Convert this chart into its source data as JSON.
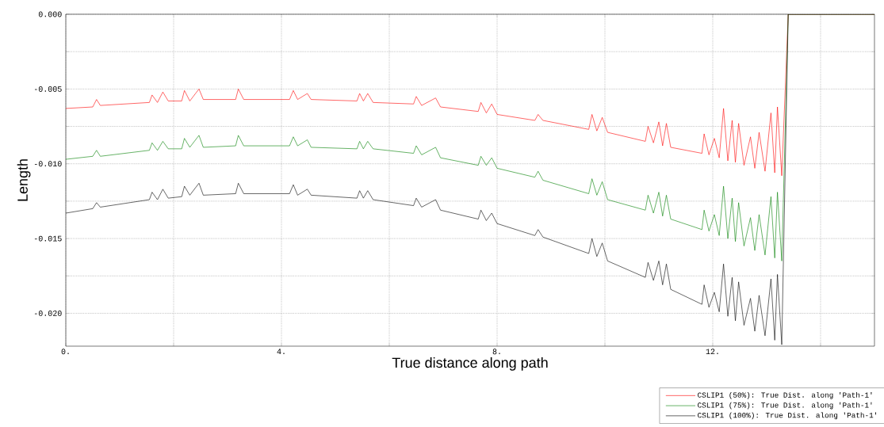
{
  "chart_data": {
    "type": "line",
    "xlabel": "True distance along path",
    "ylabel": "Length",
    "x": [
      0,
      0.5,
      0.57,
      0.64,
      1.55,
      1.6,
      1.7,
      1.8,
      1.9,
      2.15,
      2.2,
      2.3,
      2.47,
      2.55,
      3.15,
      3.2,
      3.3,
      4.15,
      4.22,
      4.3,
      4.48,
      4.55,
      5.4,
      5.45,
      5.52,
      5.6,
      5.7,
      6.45,
      6.5,
      6.6,
      6.86,
      6.95,
      7.65,
      7.7,
      7.8,
      7.9,
      8.0,
      8.7,
      8.76,
      8.85,
      9.7,
      9.76,
      9.85,
      9.95,
      10.05,
      10.75,
      10.8,
      10.9,
      11.0,
      11.07,
      11.14,
      11.22,
      11.8,
      11.84,
      11.93,
      12.03,
      12.12,
      12.2,
      12.28,
      12.36,
      12.42,
      12.48,
      12.58,
      12.7,
      12.78,
      12.86,
      12.97,
      13.08,
      13.15,
      13.2,
      13.28,
      13.4,
      14,
      15
    ],
    "series": [
      {
        "name": "CSLIP1 (50%): True Dist. along 'Path-1'",
        "color": "#ff0000",
        "values": [
          -0.0063,
          -0.0062,
          -0.0057,
          -0.0061,
          -0.0059,
          -0.0054,
          -0.0059,
          -0.0052,
          -0.0058,
          -0.0058,
          -0.0051,
          -0.0058,
          -0.005,
          -0.0057,
          -0.0057,
          -0.005,
          -0.0057,
          -0.0057,
          -0.0051,
          -0.0057,
          -0.0053,
          -0.0057,
          -0.0058,
          -0.0053,
          -0.0058,
          -0.0053,
          -0.0059,
          -0.006,
          -0.0055,
          -0.0061,
          -0.0056,
          -0.0062,
          -0.0065,
          -0.0059,
          -0.0066,
          -0.006,
          -0.0067,
          -0.0071,
          -0.0067,
          -0.0071,
          -0.0077,
          -0.0067,
          -0.0078,
          -0.0069,
          -0.0079,
          -0.0085,
          -0.0075,
          -0.0086,
          -0.0072,
          -0.0088,
          -0.0073,
          -0.0089,
          -0.0093,
          -0.008,
          -0.0094,
          -0.0083,
          -0.0096,
          -0.0063,
          -0.0098,
          -0.0071,
          -0.0099,
          -0.0073,
          -0.0101,
          -0.0082,
          -0.0103,
          -0.0079,
          -0.0105,
          -0.0066,
          -0.0106,
          -0.0062,
          -0.0108,
          0,
          0,
          0
        ]
      },
      {
        "name": "CSLIP1 (75%): True Dist. along 'Path-1'",
        "color": "#008000",
        "values": [
          -0.0097,
          -0.0095,
          -0.0091,
          -0.0095,
          -0.0091,
          -0.0086,
          -0.0091,
          -0.0085,
          -0.009,
          -0.009,
          -0.0083,
          -0.0089,
          -0.0081,
          -0.0089,
          -0.0088,
          -0.0081,
          -0.0088,
          -0.0088,
          -0.0082,
          -0.0088,
          -0.0084,
          -0.0089,
          -0.009,
          -0.0085,
          -0.009,
          -0.0085,
          -0.009,
          -0.0093,
          -0.0088,
          -0.0094,
          -0.0089,
          -0.0096,
          -0.0101,
          -0.0095,
          -0.0101,
          -0.0096,
          -0.0103,
          -0.0109,
          -0.0105,
          -0.0111,
          -0.012,
          -0.011,
          -0.0121,
          -0.0112,
          -0.0124,
          -0.0131,
          -0.0121,
          -0.0133,
          -0.0119,
          -0.0135,
          -0.0121,
          -0.0137,
          -0.0144,
          -0.0131,
          -0.0145,
          -0.0134,
          -0.0148,
          -0.0115,
          -0.015,
          -0.0123,
          -0.0152,
          -0.0126,
          -0.0155,
          -0.0136,
          -0.0158,
          -0.0134,
          -0.0161,
          -0.0122,
          -0.0163,
          -0.0119,
          -0.0165,
          0,
          0,
          0
        ]
      },
      {
        "name": "CSLIP1 (100%): True Dist. along 'Path-1'",
        "color": "#000000",
        "values": [
          -0.0133,
          -0.013,
          -0.0126,
          -0.0129,
          -0.0124,
          -0.0119,
          -0.0124,
          -0.0117,
          -0.0123,
          -0.0122,
          -0.0115,
          -0.0121,
          -0.0113,
          -0.0121,
          -0.012,
          -0.0113,
          -0.012,
          -0.012,
          -0.0114,
          -0.0121,
          -0.0117,
          -0.0121,
          -0.0123,
          -0.0118,
          -0.0123,
          -0.0118,
          -0.0124,
          -0.0128,
          -0.0123,
          -0.0129,
          -0.0124,
          -0.0131,
          -0.0137,
          -0.0131,
          -0.0138,
          -0.0133,
          -0.014,
          -0.0148,
          -0.0144,
          -0.0149,
          -0.016,
          -0.015,
          -0.0162,
          -0.0153,
          -0.0165,
          -0.0176,
          -0.0166,
          -0.0178,
          -0.0165,
          -0.0181,
          -0.0167,
          -0.0184,
          -0.0194,
          -0.0181,
          -0.0196,
          -0.0186,
          -0.0199,
          -0.0167,
          -0.0202,
          -0.0176,
          -0.0205,
          -0.0179,
          -0.0208,
          -0.019,
          -0.0212,
          -0.0188,
          -0.0215,
          -0.0177,
          -0.0218,
          -0.0174,
          -0.0221,
          0,
          0,
          0
        ]
      }
    ],
    "xlim": [
      0,
      15
    ],
    "xticks": [
      {
        "value": 0,
        "label": "0."
      },
      {
        "value": 2,
        "label": null
      },
      {
        "value": 4,
        "label": "4."
      },
      {
        "value": 6,
        "label": null
      },
      {
        "value": 8,
        "label": "8."
      },
      {
        "value": 10,
        "label": null
      },
      {
        "value": 12,
        "label": "12."
      },
      {
        "value": 14,
        "label": null
      }
    ],
    "ylim": [
      -0.0222,
      0
    ],
    "yticks": [
      {
        "value": 0,
        "label": "0.000"
      },
      {
        "value": -0.0025,
        "label": null
      },
      {
        "value": -0.005,
        "label": "-0.005"
      },
      {
        "value": -0.0075,
        "label": null
      },
      {
        "value": -0.01,
        "label": "-0.010"
      },
      {
        "value": -0.0125,
        "label": null
      },
      {
        "value": -0.015,
        "label": "-0.015"
      },
      {
        "value": -0.0175,
        "label": null
      },
      {
        "value": -0.02,
        "label": "-0.020"
      }
    ],
    "grid": true,
    "legend": "bottom right"
  }
}
